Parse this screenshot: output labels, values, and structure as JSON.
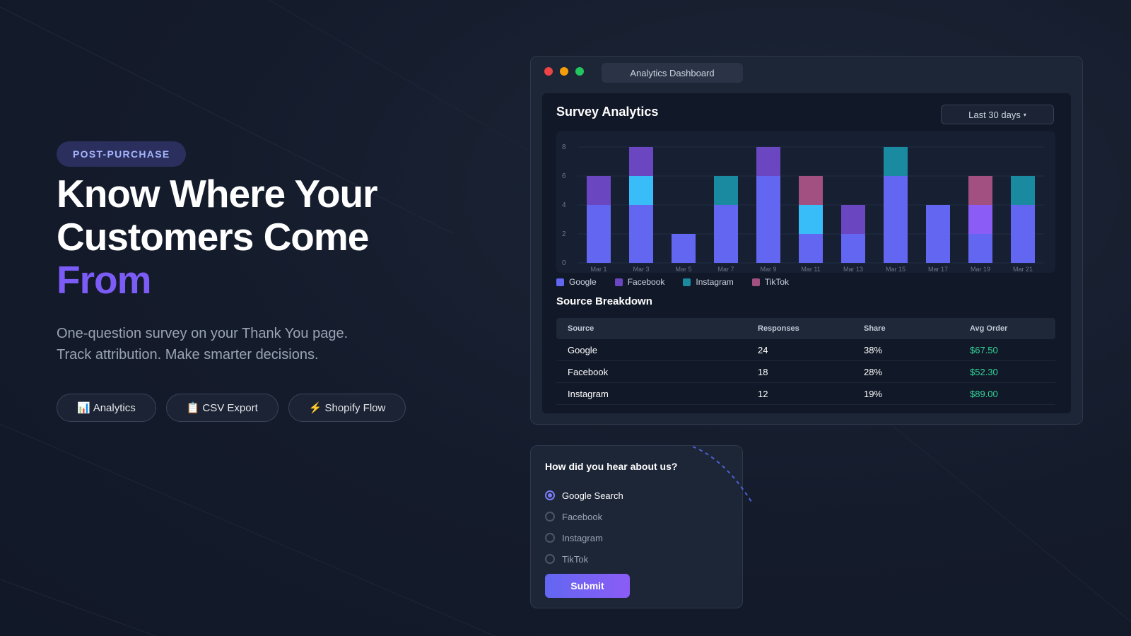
{
  "hero": {
    "badge": "POST-PURCHASE",
    "headline": [
      "Know Where Your",
      "Customers Come",
      "From"
    ],
    "sub": [
      "One-question survey on your Thank You page.",
      "Track attribution. Make smarter decisions."
    ],
    "pills": [
      {
        "icon": "📊",
        "label": "Analytics"
      },
      {
        "icon": "📋",
        "label": "CSV Export"
      },
      {
        "icon": "⚡",
        "label": "Shopify Flow"
      }
    ]
  },
  "window": {
    "tab": "Analytics Dashboard",
    "title": "Survey Analytics",
    "range": "Last 30 days",
    "range_caret": "▾",
    "breakdown_title": "Source Breakdown"
  },
  "chart_data": {
    "type": "bar",
    "stacked": true,
    "categories": [
      "Mar 1",
      "Mar 3",
      "Mar 5",
      "Mar 7",
      "Mar 9",
      "Mar 11",
      "Mar 13",
      "Mar 15",
      "Mar 17",
      "Mar 19",
      "Mar 21"
    ],
    "y_ticks": [
      "0",
      "2",
      "4",
      "6",
      "8"
    ],
    "ylim": [
      0,
      8
    ],
    "grid": true,
    "legend_position": "bottom-left",
    "series": [
      {
        "name": "Google",
        "color": "#6366f1",
        "values": [
          4,
          4,
          2,
          4,
          6,
          2,
          2,
          6,
          4,
          2,
          4
        ]
      },
      {
        "name": "",
        "color": "#38bdf8",
        "values": [
          0,
          2,
          0,
          0,
          0,
          2,
          0,
          0,
          0,
          0,
          0
        ]
      },
      {
        "name": "",
        "color": "#8b5cf6",
        "values": [
          0,
          0,
          0,
          0,
          0,
          0,
          0,
          0,
          0,
          2,
          0
        ]
      },
      {
        "name": "Facebook",
        "color": "#6b46c1",
        "values": [
          2,
          2,
          0,
          0,
          2,
          0,
          2,
          0,
          0,
          0,
          0
        ]
      },
      {
        "name": "Instagram",
        "color": "#1a8aa0",
        "values": [
          0,
          0,
          0,
          2,
          0,
          0,
          0,
          2,
          0,
          0,
          2
        ]
      },
      {
        "name": "TikTok",
        "color": "#a24f82",
        "values": [
          0,
          0,
          0,
          0,
          0,
          2,
          0,
          0,
          0,
          2,
          0
        ]
      }
    ]
  },
  "legend": [
    {
      "label": "Google",
      "color": "#6366f1"
    },
    {
      "label": "Facebook",
      "color": "#6b46c1"
    },
    {
      "label": "Instagram",
      "color": "#1a8aa0"
    },
    {
      "label": "TikTok",
      "color": "#a24f82"
    }
  ],
  "table": {
    "headers": [
      "Source",
      "Responses",
      "Share",
      "Avg Order"
    ],
    "rows": [
      [
        "Google",
        "24",
        "38%",
        "$67.50"
      ],
      [
        "Facebook",
        "18",
        "28%",
        "$52.30"
      ],
      [
        "Instagram",
        "12",
        "19%",
        "$89.00"
      ]
    ]
  },
  "survey": {
    "question": "How did you hear about us?",
    "options": [
      "Google Search",
      "Facebook",
      "Instagram",
      "TikTok"
    ],
    "selected_index": 0,
    "submit": "Submit"
  }
}
